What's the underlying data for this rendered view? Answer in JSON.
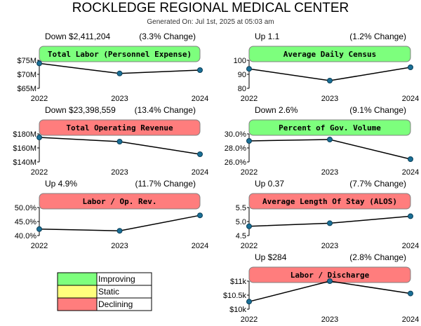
{
  "header": {
    "title": "ROCKLEDGE REGIONAL MEDICAL CENTER",
    "generated": "Generated On: Jul 1st, 2025 at 05:03 am"
  },
  "colors": {
    "improving": "#7dff7d",
    "static": "#ffff7d",
    "declining": "#ff7d7d",
    "line": "#000000",
    "marker": "#1a6f96"
  },
  "legend": [
    {
      "label": "Improving",
      "status": "improving"
    },
    {
      "label": "Static",
      "status": "static"
    },
    {
      "label": "Declining",
      "status": "declining"
    }
  ],
  "chart_data": [
    {
      "type": "line",
      "title": "Total Labor (Personnel Expense)",
      "status": "improving",
      "change_left": "Down $2,411,204",
      "change_right": "(3.3% Change)",
      "x": [
        "2022",
        "2023",
        "2024"
      ],
      "values": [
        73.9,
        70.3,
        71.5
      ],
      "ylim": [
        65,
        75
      ],
      "yticks": [
        65,
        70,
        75
      ],
      "yticklabels": [
        "$65M",
        "$70M",
        "$75M"
      ]
    },
    {
      "type": "line",
      "title": "Average Daily Census",
      "status": "improving",
      "change_left": "Up 1.1",
      "change_right": "(1.2% Change)",
      "x": [
        "2022",
        "2023",
        "2024"
      ],
      "values": [
        93.9,
        85.5,
        95.0
      ],
      "ylim": [
        80,
        100
      ],
      "yticks": [
        80,
        90,
        100
      ],
      "yticklabels": [
        "80",
        "90",
        "100"
      ]
    },
    {
      "type": "line",
      "title": "Total Operating Revenue",
      "status": "declining",
      "change_left": "Down $23,398,559",
      "change_right": "(13.4% Change)",
      "x": [
        "2022",
        "2023",
        "2024"
      ],
      "values": [
        175,
        169,
        151
      ],
      "ylim": [
        140,
        180
      ],
      "yticks": [
        140,
        160,
        180
      ],
      "yticklabels": [
        "$140M",
        "$160M",
        "$180M"
      ]
    },
    {
      "type": "line",
      "title": "Percent of Gov. Volume",
      "status": "improving",
      "change_left": "Down 2.6%",
      "change_right": "(9.1% Change)",
      "x": [
        "2022",
        "2023",
        "2024"
      ],
      "values": [
        29.0,
        29.2,
        26.4
      ],
      "ylim": [
        26,
        30
      ],
      "yticks": [
        26,
        28,
        30
      ],
      "yticklabels": [
        "26.0%",
        "28.0%",
        "30.0%"
      ]
    },
    {
      "type": "line",
      "title": "Labor / Op. Rev.",
      "status": "declining",
      "change_left": "Up 4.9%",
      "change_right": "(11.7% Change)",
      "x": [
        "2022",
        "2023",
        "2024"
      ],
      "values": [
        42.3,
        41.7,
        47.2
      ],
      "ylim": [
        40,
        50
      ],
      "yticks": [
        40,
        45,
        50
      ],
      "yticklabels": [
        "40.0%",
        "45.0%",
        "50.0%"
      ]
    },
    {
      "type": "line",
      "title": "Average Length Of Stay (ALOS)",
      "status": "declining",
      "change_left": "Up 0.37",
      "change_right": "(7.7% Change)",
      "x": [
        "2022",
        "2023",
        "2024"
      ],
      "values": [
        4.83,
        4.94,
        5.19
      ],
      "ylim": [
        4.5,
        5.5
      ],
      "yticks": [
        4.5,
        5.0,
        5.5
      ],
      "yticklabels": [
        "4.5",
        "5.0",
        "5.5"
      ]
    },
    {
      "type": "line",
      "title": "Labor / Discharge",
      "status": "declining",
      "change_left": "Up $284",
      "change_right": "(2.8% Change)",
      "x": [
        "2022",
        "2023",
        "2024"
      ],
      "values": [
        10270,
        11000,
        10560
      ],
      "ylim": [
        10000,
        11000
      ],
      "yticks": [
        10000,
        10500,
        11000
      ],
      "yticklabels": [
        "$10k",
        "$10.5k",
        "$11k"
      ]
    }
  ]
}
